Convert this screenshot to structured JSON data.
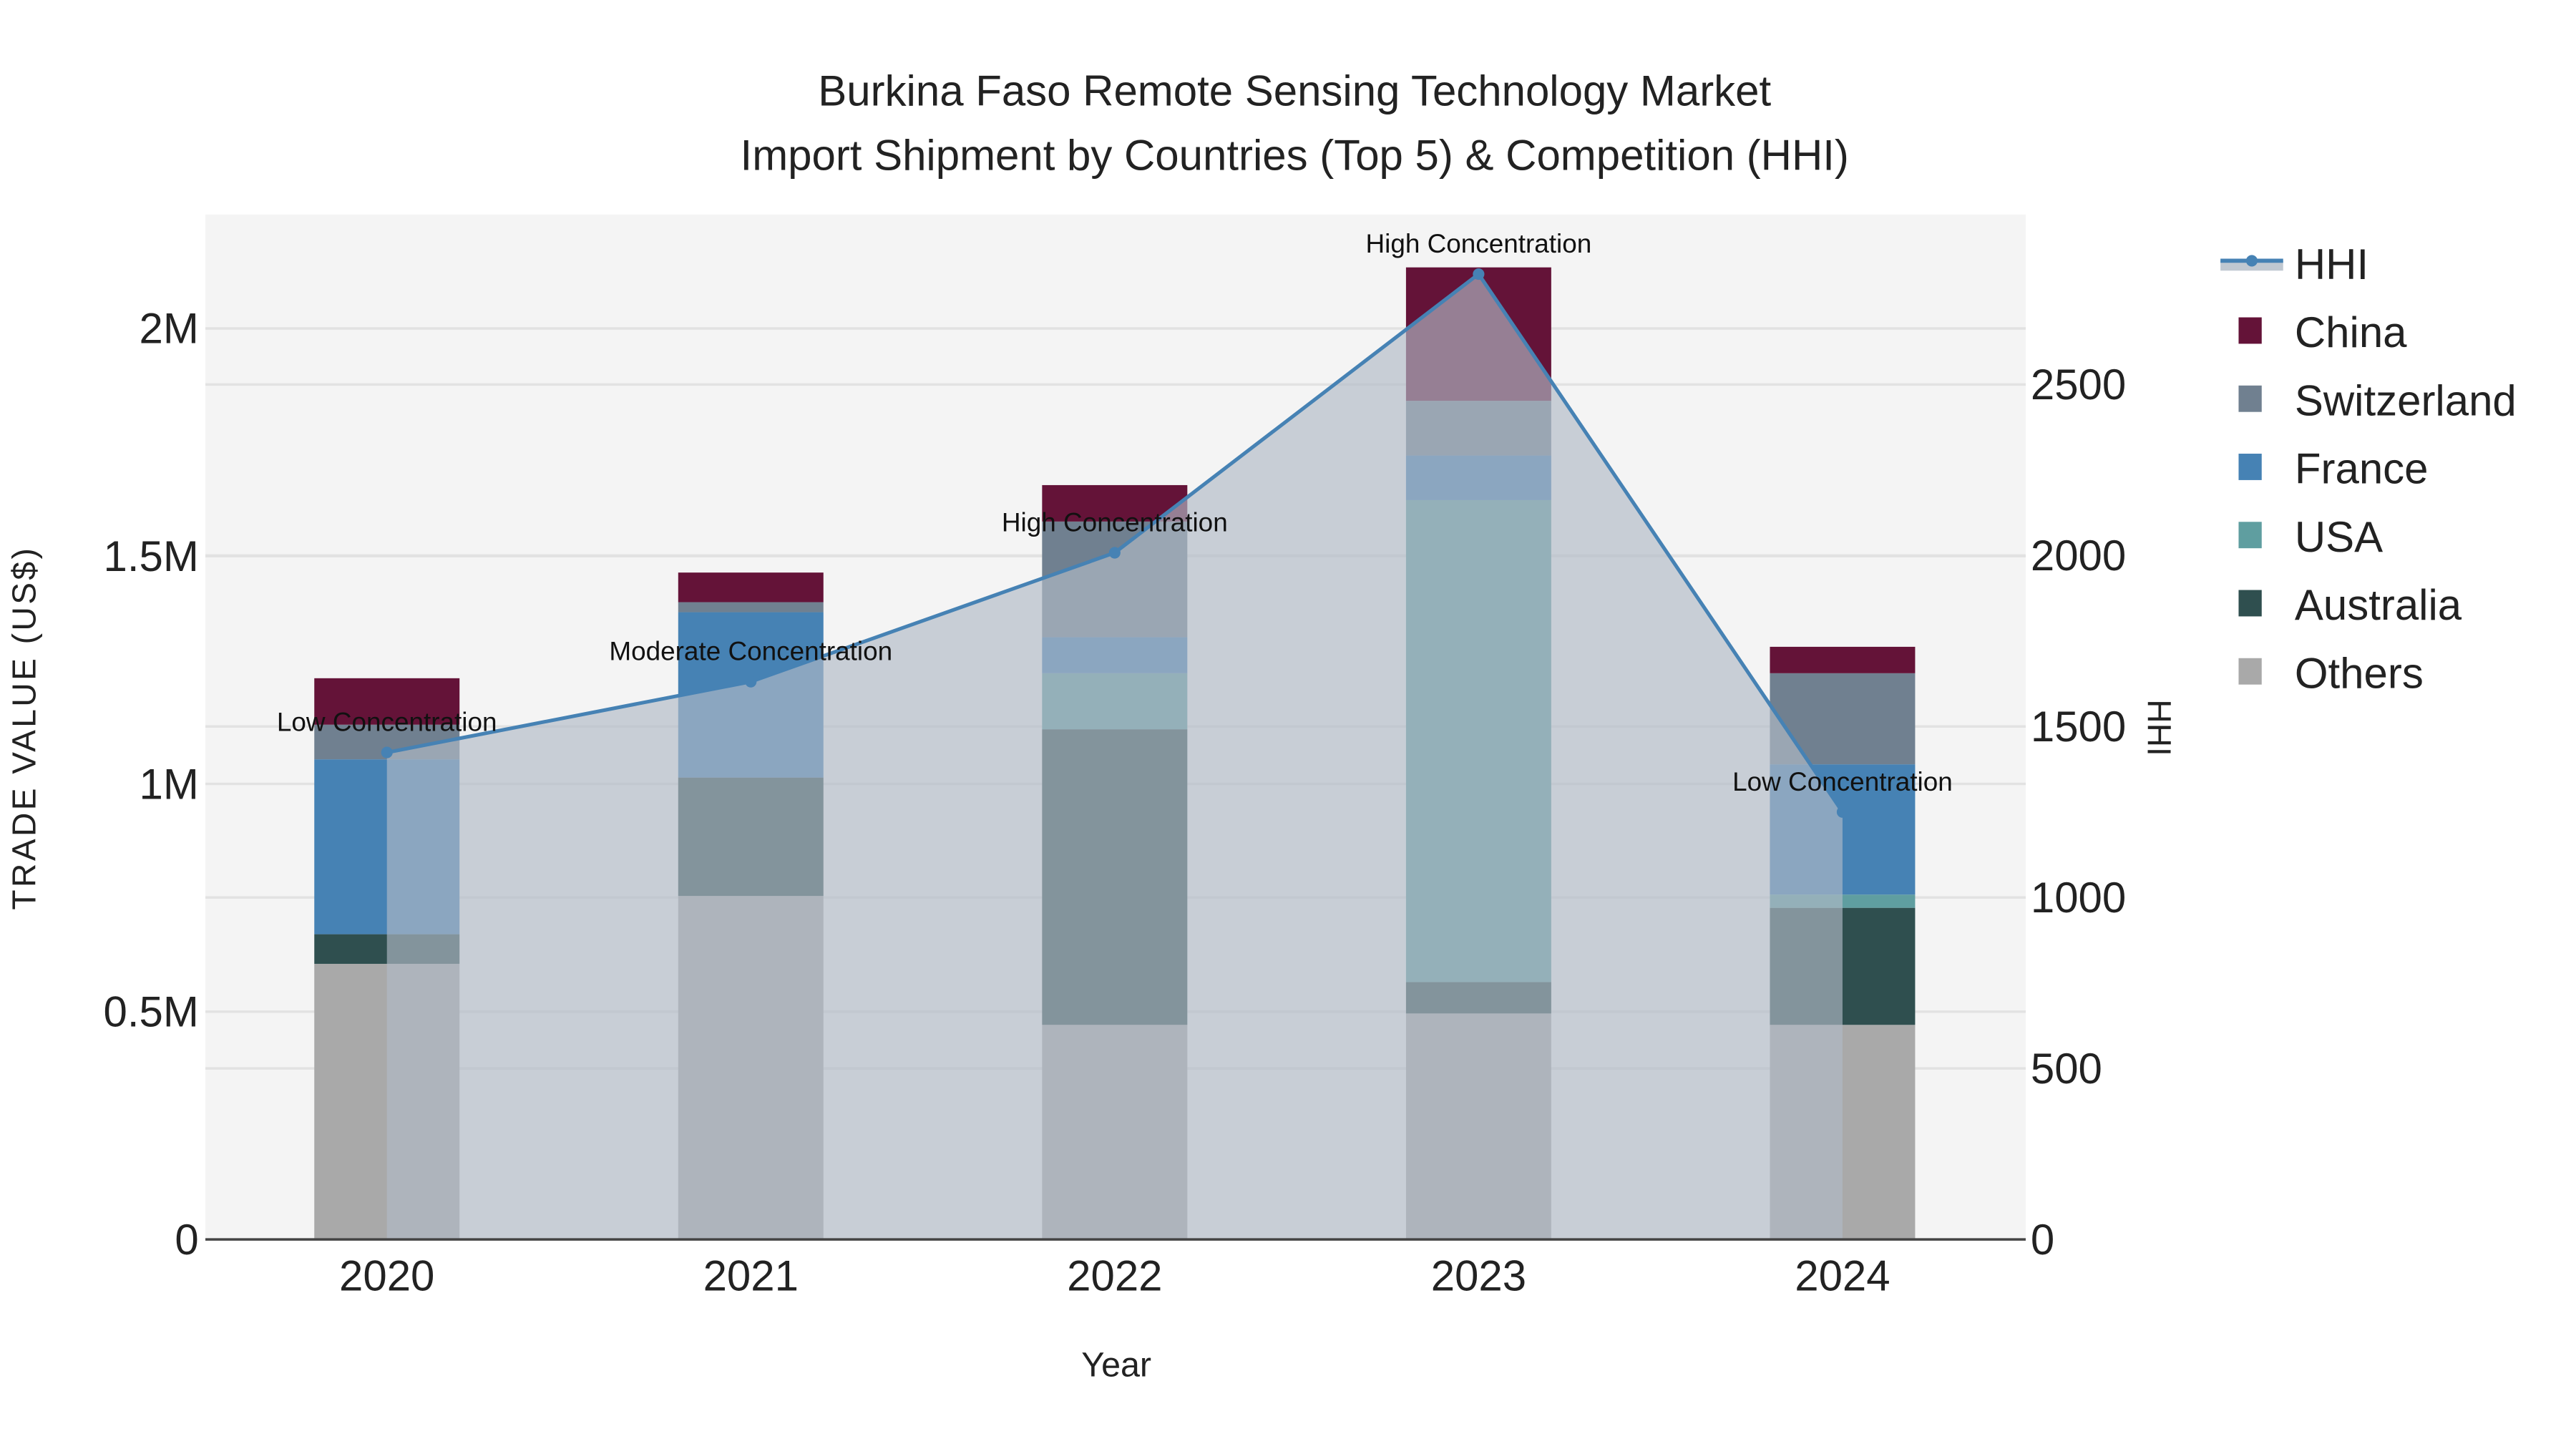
{
  "chart_data": {
    "type": "bar",
    "stacked": true,
    "title_lines": [
      "Burkina Faso Remote Sensing Technology Market",
      "Import Shipment by Countries (Top 5) & Competition (HHI)"
    ],
    "xlabel": "Year",
    "ylabel": "TRADE VALUE (US$)",
    "y2label": "HHI",
    "categories": [
      "2020",
      "2021",
      "2022",
      "2023",
      "2024"
    ],
    "ylim": [
      0,
      2250000
    ],
    "y2lim": [
      0,
      2990
    ],
    "yticks": [
      {
        "v": 0,
        "label": "0"
      },
      {
        "v": 500000,
        "label": "0.5M"
      },
      {
        "v": 1000000,
        "label": "1M"
      },
      {
        "v": 1500000,
        "label": "1.5M"
      },
      {
        "v": 2000000,
        "label": "2M"
      }
    ],
    "y2ticks": [
      {
        "v": 0,
        "label": "0"
      },
      {
        "v": 500,
        "label": "500"
      },
      {
        "v": 1000,
        "label": "1000"
      },
      {
        "v": 1500,
        "label": "1500"
      },
      {
        "v": 2000,
        "label": "2000"
      },
      {
        "v": 2500,
        "label": "2500"
      }
    ],
    "series": [
      {
        "name": "Others",
        "color": "#a9a9a9",
        "values": [
          605000,
          754000,
          471000,
          496000,
          471000
        ]
      },
      {
        "name": "Australia",
        "color": "#2f4f4f",
        "values": [
          65000,
          260000,
          649000,
          69000,
          257000
        ]
      },
      {
        "name": "USA",
        "color": "#5f9ea0",
        "values": [
          0,
          0,
          123000,
          1058000,
          29000
        ]
      },
      {
        "name": "France",
        "color": "#4682b4",
        "values": [
          384000,
          363000,
          79000,
          98000,
          286000
        ]
      },
      {
        "name": "Switzerland",
        "color": "#708090",
        "values": [
          76000,
          22000,
          254000,
          120000,
          200000
        ]
      },
      {
        "name": "China",
        "color": "#641338",
        "values": [
          102000,
          65000,
          80000,
          293000,
          58000
        ]
      }
    ],
    "hhi": {
      "name": "HHI",
      "color": "#4682b4",
      "values": [
        1424,
        1631,
        2008,
        2823,
        1250
      ]
    },
    "annotations": [
      "Low Concentration",
      "Moderate Concentration",
      "High Concentration",
      "High Concentration",
      "Low Concentration"
    ],
    "legend": {
      "placement": "right",
      "order": [
        "HHI",
        "China",
        "Switzerland",
        "France",
        "USA",
        "Australia",
        "Others"
      ]
    },
    "grid": true
  }
}
